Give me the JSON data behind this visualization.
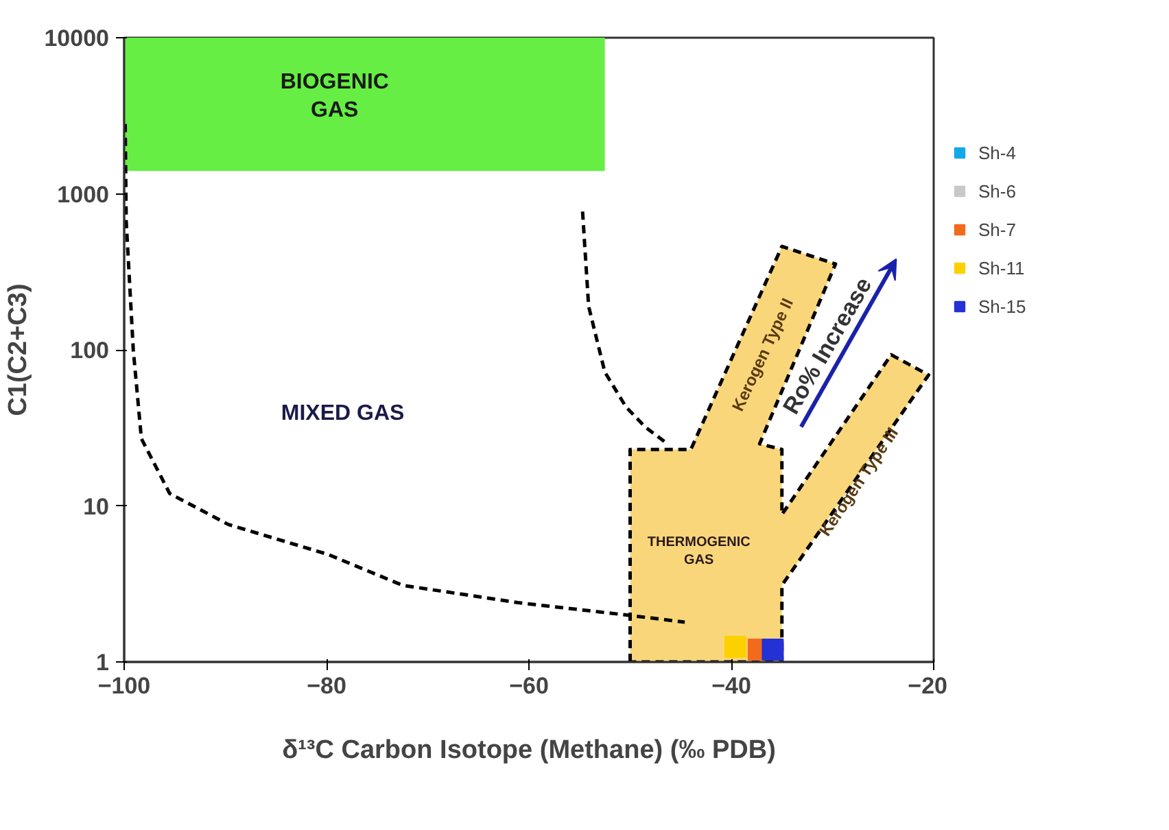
{
  "chart_data": {
    "type": "scatter",
    "xlabel": "δ¹³C Carbon Isotope (Methane) (‰ PDB)",
    "ylabel": "C1(C2+C3)",
    "xlim": [
      -100,
      -20
    ],
    "ylim": [
      1,
      10000
    ],
    "xticks": [
      -100,
      -80,
      -60,
      -40,
      -20
    ],
    "yticks": [
      1,
      10,
      100,
      1000,
      10000
    ],
    "log": "y",
    "legend": "right",
    "series": [
      {
        "type": "area",
        "color": "#66ee44",
        "x": [
          -100,
          -52.5,
          -52.5,
          -100
        ],
        "values": [
          1400,
          1400,
          10000,
          10000
        ]
      },
      {
        "type": "area",
        "color": "#fad67b",
        "line_style": "dashed",
        "x": [
          -50,
          -50,
          -44,
          -35,
          -29.7,
          -37.2,
          -35,
          -35,
          -24.2,
          -20.5,
          -35,
          -35
        ],
        "values": [
          1,
          23,
          23,
          460,
          355,
          25,
          23,
          8.8,
          93,
          69,
          3.1,
          1
        ]
      },
      {
        "type": "line",
        "color": "#000000",
        "line_style": "dashed",
        "x": [
          -99.9,
          -99.8,
          -99.1,
          -98.3,
          -95.5,
          -89.7,
          -79.9,
          -72.5,
          -61.1,
          -50.4,
          -44.6
        ],
        "values": [
          2800,
          670,
          100,
          27,
          12,
          7.6,
          4.9,
          3.1,
          2.4,
          2.0,
          1.8
        ]
      },
      {
        "type": "line",
        "color": "#000000",
        "line_style": "dashed",
        "x": [
          -54.7,
          -54.1,
          -52.5,
          -50.4,
          -48.5,
          -46.3
        ],
        "values": [
          770,
          190,
          72,
          43,
          32,
          25
        ]
      },
      {
        "name": "Sh-4",
        "color": "#12a9e8",
        "marker": "square",
        "values": [
          null
        ]
      },
      {
        "name": "Sh-6",
        "color": "#c8c8c8",
        "marker": "square",
        "values": [
          null
        ]
      },
      {
        "name": "Sh-7",
        "color": "#f26b1d",
        "marker": "square",
        "x": [
          -37.3
        ],
        "values": [
          1.2
        ]
      },
      {
        "name": "Sh-11",
        "color": "#fdd000",
        "marker": "square",
        "x": [
          -39.6
        ],
        "values": [
          1.25
        ]
      },
      {
        "name": "Sh-15",
        "color": "#2431d4",
        "marker": "square",
        "x": [
          -35.9
        ],
        "values": [
          1.2
        ]
      }
    ],
    "annotations": [
      "BIOGENIC GAS",
      "MIXED GAS",
      "THERMOGENIC GAS",
      "Kerogen Type II",
      "Kerogen Type III",
      "Ro% Increase"
    ]
  }
}
